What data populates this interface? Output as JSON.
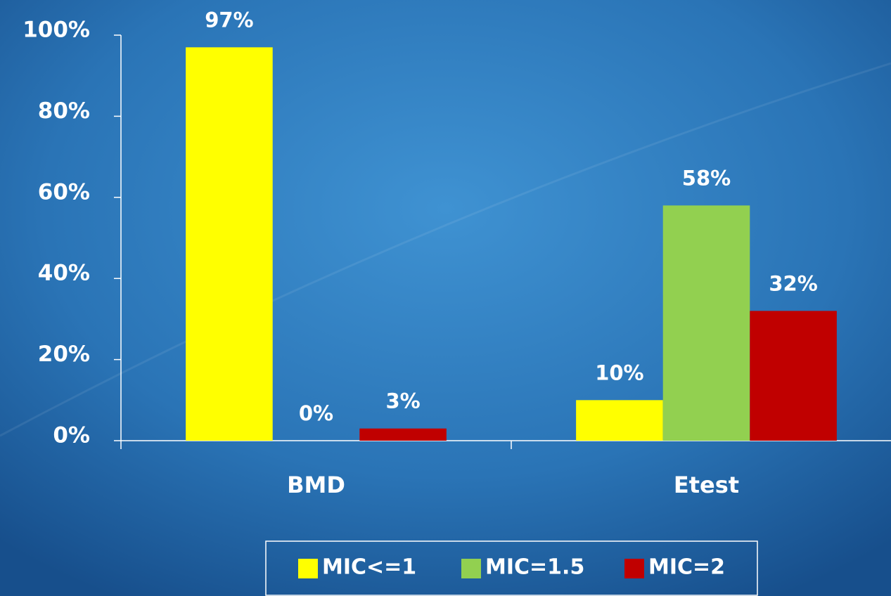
{
  "chart_data": {
    "type": "bar",
    "categories": [
      "BMD",
      "Etest"
    ],
    "series": [
      {
        "name": "MIC<=1",
        "color": "#ffff00",
        "values": [
          97,
          10
        ],
        "value_labels": [
          "97%",
          "10%"
        ]
      },
      {
        "name": "MIC=1.5",
        "color": "#92d050",
        "values": [
          0,
          58
        ],
        "value_labels": [
          "0%",
          "58%"
        ]
      },
      {
        "name": "MIC=2",
        "color": "#c00000",
        "values": [
          3,
          32
        ],
        "value_labels": [
          "3%",
          "32%"
        ]
      }
    ],
    "ylim": [
      0,
      100
    ],
    "yticks": [
      {
        "value": 0,
        "label": "0%"
      },
      {
        "value": 20,
        "label": "20%"
      },
      {
        "value": 40,
        "label": "40%"
      },
      {
        "value": 60,
        "label": "60%"
      },
      {
        "value": 80,
        "label": "80%"
      },
      {
        "value": 100,
        "label": "100%"
      }
    ],
    "grid": false,
    "legend": "bottom"
  }
}
